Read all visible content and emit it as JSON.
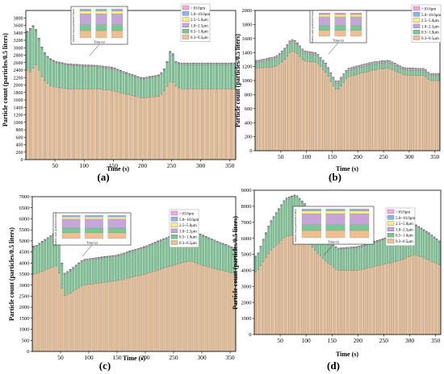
{
  "figure": {
    "panel_labels": [
      "(a)",
      "(b)",
      "(c)",
      "(d)"
    ]
  },
  "legend_entries": [
    ">10.0μm",
    "5.0~10.0μm",
    "2.5~5.0μm",
    "1.0~2.5μm",
    "0.5~1.0μm",
    "0.3~0.5μm"
  ],
  "colors": {
    "0.3~0.5μm": "#efbf8f",
    "0.5~1.0μm": "#78c893",
    "1.0~2.5μm": "#c6a5d8",
    "2.5~5.0μm": "#f7ef86",
    "5.0~10.0μm": "#8fb4e8",
    ">10.0μm": "#f2a8e0"
  },
  "chart_data": [
    {
      "type": "bar",
      "panel": "(a)",
      "stacked": true,
      "xlabel": "Time (s)",
      "ylabel": "Particle count (particles/0.5 liters)",
      "xlim": [
        0,
        360
      ],
      "ylim": [
        0,
        4000
      ],
      "x_ticks": [
        50,
        100,
        150,
        200,
        250,
        300,
        350
      ],
      "y_ticks": [
        0,
        200,
        400,
        600,
        800,
        1000,
        1200,
        1400,
        1600,
        1800,
        2000,
        2200,
        2400,
        2600,
        2800,
        3000,
        3200,
        3400,
        3600,
        3800
      ],
      "bar_count": 72,
      "bar_step": 5,
      "legend": {
        "position": "top-right"
      },
      "inset": {
        "xlabel": "Time (s)",
        "ylabel": "Particle count (particles/0.5 liters)"
      },
      "series": [
        {
          "name": "0.3~0.5μm",
          "anchors": [
            [
              5,
              2400
            ],
            [
              10,
              2300
            ],
            [
              15,
              2600
            ],
            [
              20,
              2500
            ],
            [
              25,
              2300
            ],
            [
              30,
              2150
            ],
            [
              40,
              2000
            ],
            [
              50,
              1950
            ],
            [
              70,
              1900
            ],
            [
              110,
              1900
            ],
            [
              120,
              1900
            ],
            [
              150,
              1850
            ],
            [
              160,
              1800
            ],
            [
              200,
              1650
            ],
            [
              230,
              1700
            ],
            [
              240,
              1900
            ],
            [
              250,
              2150
            ],
            [
              255,
              2000
            ],
            [
              265,
              1900
            ],
            [
              360,
              1900
            ]
          ]
        },
        {
          "name": "0.5~1.0μm",
          "anchors": [
            [
              5,
              1000
            ],
            [
              10,
              1250
            ],
            [
              15,
              950
            ],
            [
              20,
              850
            ],
            [
              30,
              720
            ],
            [
              50,
              650
            ],
            [
              100,
              600
            ],
            [
              150,
              580
            ],
            [
              200,
              500
            ],
            [
              240,
              550
            ],
            [
              250,
              850
            ],
            [
              255,
              600
            ],
            [
              265,
              650
            ],
            [
              360,
              650
            ]
          ]
        },
        {
          "name": "1.0~2.5μm",
          "anchors": [
            [
              0,
              25
            ],
            [
              360,
              25
            ]
          ]
        },
        {
          "name": "2.5~5.0μm",
          "anchors": [
            [
              0,
              10
            ],
            [
              360,
              10
            ]
          ]
        },
        {
          "name": "5.0~10.0μm",
          "anchors": [
            [
              0,
              6
            ],
            [
              360,
              6
            ]
          ]
        },
        {
          "name": ">10.0μm",
          "anchors": [
            [
              0,
              3
            ],
            [
              360,
              3
            ]
          ]
        }
      ]
    },
    {
      "type": "bar",
      "panel": "(b)",
      "stacked": true,
      "xlabel": "Time (s)",
      "ylabel": "Particle count (particles/0.5 liters)",
      "xlim": [
        0,
        360
      ],
      "ylim": [
        0,
        2000
      ],
      "x_ticks": [
        50,
        100,
        150,
        200,
        250,
        300,
        350
      ],
      "y_ticks": [
        0,
        200,
        400,
        600,
        800,
        1000,
        1200,
        1400,
        1600,
        1800,
        2000
      ],
      "bar_count": 72,
      "bar_step": 5,
      "legend": {
        "position": "top-right"
      },
      "inset": {
        "xlabel": "Time (s)",
        "ylabel": "Particle count (particles/0.5 liters)"
      },
      "series": [
        {
          "name": "0.3~0.5μm",
          "anchors": [
            [
              5,
              1180
            ],
            [
              40,
              1200
            ],
            [
              55,
              1280
            ],
            [
              70,
              1420
            ],
            [
              80,
              1400
            ],
            [
              95,
              1280
            ],
            [
              120,
              1260
            ],
            [
              140,
              1100
            ],
            [
              150,
              950
            ],
            [
              160,
              850
            ],
            [
              180,
              1050
            ],
            [
              230,
              1150
            ],
            [
              260,
              1180
            ],
            [
              290,
              1080
            ],
            [
              330,
              1070
            ],
            [
              340,
              1000
            ],
            [
              360,
              1000
            ]
          ]
        },
        {
          "name": "0.5~1.0μm",
          "anchors": [
            [
              5,
              75
            ],
            [
              70,
              140
            ],
            [
              100,
              110
            ],
            [
              150,
              90
            ],
            [
              200,
              90
            ],
            [
              260,
              80
            ],
            [
              300,
              70
            ],
            [
              360,
              70
            ]
          ]
        },
        {
          "name": "1.0~2.5μm",
          "anchors": [
            [
              0,
              20
            ],
            [
              360,
              20
            ]
          ]
        },
        {
          "name": "2.5~5.0μm",
          "anchors": [
            [
              0,
              8
            ],
            [
              360,
              8
            ]
          ]
        },
        {
          "name": "5.0~10.0μm",
          "anchors": [
            [
              0,
              4
            ],
            [
              360,
              4
            ]
          ]
        },
        {
          "name": ">10.0μm",
          "anchors": [
            [
              0,
              2
            ],
            [
              360,
              2
            ]
          ]
        }
      ]
    },
    {
      "type": "bar",
      "panel": "(c)",
      "stacked": true,
      "xlabel": "Time (s)",
      "ylabel": "Particle count (particles/0.5 liters)",
      "xlim": [
        0,
        360
      ],
      "ylim": [
        0,
        7000
      ],
      "x_ticks": [
        50,
        100,
        150,
        200,
        250,
        300,
        350
      ],
      "y_ticks": [
        0,
        500,
        1000,
        1500,
        2000,
        2500,
        3000,
        3500,
        4000,
        4500,
        5000,
        5500,
        6000,
        6500,
        7000
      ],
      "bar_count": 72,
      "bar_step": 5,
      "legend": {
        "position": "top-right"
      },
      "inset": {
        "xlabel": "Time (s)",
        "ylabel": "Particle count (particles/0.5 liters)"
      },
      "series": [
        {
          "name": "0.3~0.5μm",
          "anchors": [
            [
              5,
              3500
            ],
            [
              25,
              3700
            ],
            [
              45,
              3900
            ],
            [
              55,
              2500
            ],
            [
              65,
              2600
            ],
            [
              90,
              3000
            ],
            [
              120,
              3100
            ],
            [
              150,
              3200
            ],
            [
              200,
              3500
            ],
            [
              250,
              3900
            ],
            [
              280,
              4100
            ],
            [
              300,
              3900
            ],
            [
              330,
              3700
            ],
            [
              360,
              3500
            ]
          ]
        },
        {
          "name": "0.5~1.0μm",
          "anchors": [
            [
              5,
              1200
            ],
            [
              45,
              1500
            ],
            [
              55,
              950
            ],
            [
              90,
              1100
            ],
            [
              150,
              1100
            ],
            [
              200,
              1200
            ],
            [
              280,
              1400
            ],
            [
              330,
              1200
            ],
            [
              360,
              1100
            ]
          ]
        },
        {
          "name": "1.0~2.5μm",
          "anchors": [
            [
              0,
              40
            ],
            [
              360,
              40
            ]
          ]
        },
        {
          "name": "2.5~5.0μm",
          "anchors": [
            [
              0,
              15
            ],
            [
              360,
              15
            ]
          ]
        },
        {
          "name": "5.0~10.0μm",
          "anchors": [
            [
              0,
              6
            ],
            [
              360,
              6
            ]
          ]
        },
        {
          "name": ">10.0μm",
          "anchors": [
            [
              0,
              3
            ],
            [
              360,
              3
            ]
          ]
        }
      ]
    },
    {
      "type": "bar",
      "panel": "(d)",
      "stacked": true,
      "xlabel": "Time (s)",
      "ylabel": "Particle count (particles/0.5 liters)",
      "xlim": [
        0,
        360
      ],
      "ylim": [
        0,
        9000
      ],
      "x_ticks": [
        50,
        100,
        150,
        200,
        250,
        300,
        350
      ],
      "y_ticks": [
        0,
        1000,
        2000,
        3000,
        4000,
        5000,
        6000,
        7000,
        8000,
        9000
      ],
      "bar_count": 72,
      "bar_step": 5,
      "legend": {
        "position": "top-right"
      },
      "inset": {
        "xlabel": "Time (s)",
        "ylabel": "Particle count (particles/0.5 liters)"
      },
      "series": [
        {
          "name": "0.3~0.5μm",
          "anchors": [
            [
              5,
              3900
            ],
            [
              30,
              5200
            ],
            [
              60,
              6100
            ],
            [
              80,
              6300
            ],
            [
              100,
              5900
            ],
            [
              130,
              4800
            ],
            [
              160,
              4000
            ],
            [
              200,
              4000
            ],
            [
              240,
              4300
            ],
            [
              280,
              4600
            ],
            [
              310,
              5000
            ],
            [
              340,
              4600
            ],
            [
              360,
              4300
            ]
          ]
        },
        {
          "name": "0.5~1.0μm",
          "anchors": [
            [
              5,
              900
            ],
            [
              30,
              1700
            ],
            [
              60,
              2300
            ],
            [
              80,
              2350
            ],
            [
              100,
              2100
            ],
            [
              130,
              1600
            ],
            [
              160,
              1300
            ],
            [
              200,
              1400
            ],
            [
              240,
              1500
            ],
            [
              280,
              1600
            ],
            [
              310,
              1800
            ],
            [
              340,
              1600
            ],
            [
              360,
              1400
            ]
          ]
        },
        {
          "name": "1.0~2.5μm",
          "anchors": [
            [
              0,
              60
            ],
            [
              360,
              60
            ]
          ]
        },
        {
          "name": "2.5~5.0μm",
          "anchors": [
            [
              0,
              20
            ],
            [
              360,
              20
            ]
          ]
        },
        {
          "name": "5.0~10.0μm",
          "anchors": [
            [
              0,
              8
            ],
            [
              360,
              8
            ]
          ]
        },
        {
          "name": ">10.0μm",
          "anchors": [
            [
              0,
              4
            ],
            [
              360,
              4
            ]
          ]
        }
      ]
    }
  ]
}
